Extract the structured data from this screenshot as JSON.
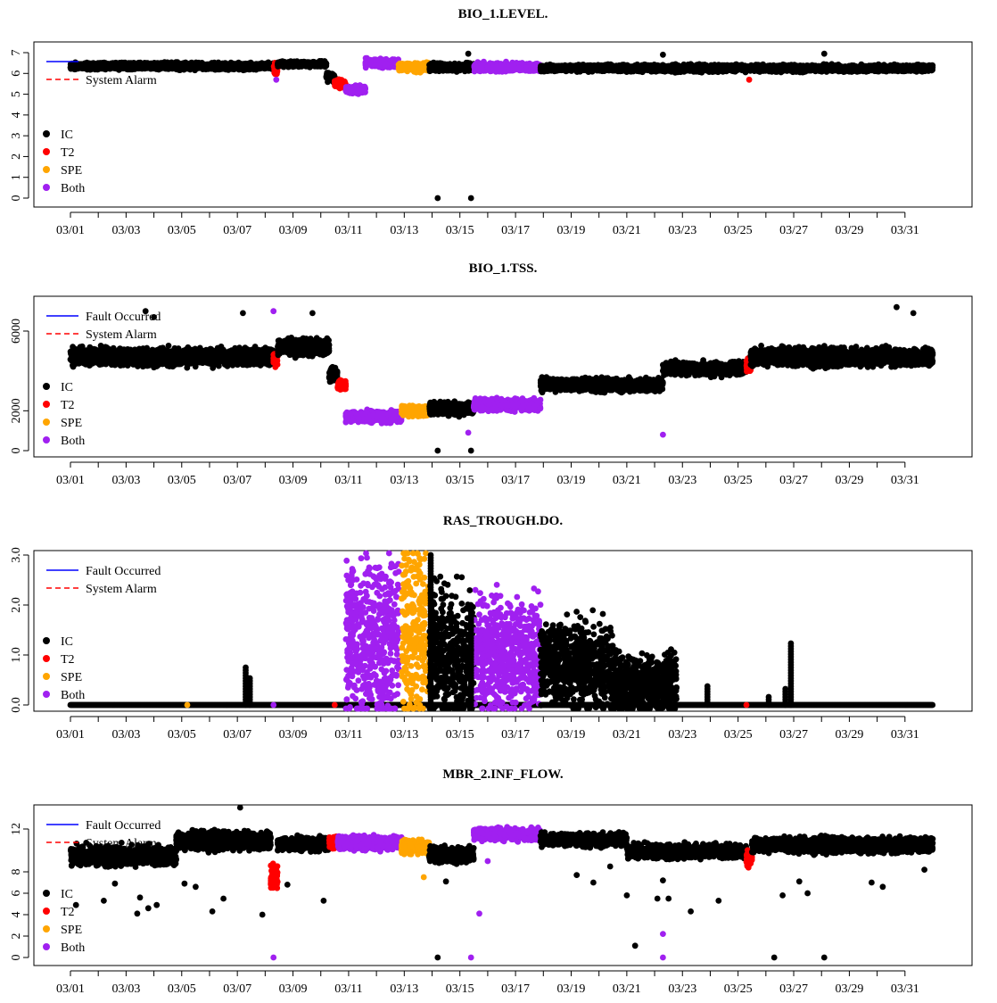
{
  "colors": {
    "IC": "#000000",
    "T2": "#ff0000",
    "SPE": "#ffa500",
    "Both": "#a020f0",
    "fault_line": "#0000ff",
    "alarm_line": "#ff0000"
  },
  "chart_data": [
    {
      "type": "scatter",
      "title": "BIO_1.LEVEL.",
      "x_tick_labels": [
        "03/01",
        "03/03",
        "03/05",
        "03/07",
        "03/09",
        "03/11",
        "03/13",
        "03/15",
        "03/17",
        "03/19",
        "03/21",
        "03/23",
        "03/25",
        "03/27",
        "03/29",
        "03/31"
      ],
      "x_range_days": [
        1,
        32
      ],
      "y_ticks": [
        0,
        1,
        2,
        3,
        4,
        5,
        6,
        7
      ],
      "y_tick_labels": [
        "0",
        "1",
        "2",
        "3",
        "4",
        "5",
        "6",
        "7"
      ],
      "ylim": [
        -0.3,
        7.3
      ],
      "legend_lines": [
        "",
        "System Alarm"
      ],
      "legend_points": [
        "IC",
        "T2",
        "SPE",
        "Both"
      ],
      "segments": [
        {
          "cls": "IC",
          "start": 1.0,
          "end": 8.3,
          "level": 6.35,
          "spread": 0.25
        },
        {
          "cls": "T2",
          "start": 8.3,
          "end": 8.45,
          "level": 6.2,
          "spread": 0.4
        },
        {
          "cls": "IC",
          "start": 8.45,
          "end": 10.2,
          "level": 6.45,
          "spread": 0.2
        },
        {
          "cls": "IC",
          "start": 10.2,
          "end": 10.5,
          "level": 5.8,
          "spread": 0.4
        },
        {
          "cls": "T2",
          "start": 10.5,
          "end": 10.9,
          "level": 5.5,
          "spread": 0.3
        },
        {
          "cls": "Both",
          "start": 10.9,
          "end": 11.6,
          "level": 5.2,
          "spread": 0.3
        },
        {
          "cls": "Both",
          "start": 11.6,
          "end": 12.8,
          "level": 6.5,
          "spread": 0.3
        },
        {
          "cls": "SPE",
          "start": 12.8,
          "end": 13.9,
          "level": 6.3,
          "spread": 0.3
        },
        {
          "cls": "IC",
          "start": 13.9,
          "end": 15.5,
          "level": 6.3,
          "spread": 0.3
        },
        {
          "cls": "Both",
          "start": 15.5,
          "end": 17.9,
          "level": 6.3,
          "spread": 0.3
        },
        {
          "cls": "IC",
          "start": 17.9,
          "end": 32.0,
          "level": 6.25,
          "spread": 0.25
        }
      ],
      "outliers": [
        {
          "x": 14.2,
          "y": 0.0,
          "cls": "IC"
        },
        {
          "x": 15.4,
          "y": 0.0,
          "cls": "IC"
        },
        {
          "x": 15.3,
          "y": 6.95,
          "cls": "IC"
        },
        {
          "x": 22.3,
          "y": 6.9,
          "cls": "IC"
        },
        {
          "x": 28.1,
          "y": 6.95,
          "cls": "IC"
        },
        {
          "x": 25.4,
          "y": 5.7,
          "cls": "T2"
        },
        {
          "x": 8.4,
          "y": 5.7,
          "cls": "Both"
        }
      ]
    },
    {
      "type": "scatter",
      "title": "BIO_1.TSS.",
      "x_tick_labels": [
        "03/01",
        "03/03",
        "03/05",
        "03/07",
        "03/09",
        "03/11",
        "03/13",
        "03/15",
        "03/17",
        "03/19",
        "03/21",
        "03/23",
        "03/25",
        "03/27",
        "03/29",
        "03/31"
      ],
      "x_range_days": [
        1,
        32
      ],
      "y_ticks": [
        0,
        2000,
        6000
      ],
      "y_tick_labels": [
        "0",
        "2000",
        "6000"
      ],
      "ylim": [
        -200,
        7300
      ],
      "legend_lines": [
        "Fault Occurred",
        "System Alarm"
      ],
      "legend_points": [
        "IC",
        "T2",
        "SPE",
        "Both"
      ],
      "segments": [
        {
          "cls": "IC",
          "start": 1.0,
          "end": 8.3,
          "level": 4700,
          "spread": 650
        },
        {
          "cls": "T2",
          "start": 8.3,
          "end": 8.45,
          "level": 4600,
          "spread": 600
        },
        {
          "cls": "IC",
          "start": 8.45,
          "end": 10.3,
          "level": 5200,
          "spread": 650
        },
        {
          "cls": "IC",
          "start": 10.3,
          "end": 10.6,
          "level": 3800,
          "spread": 500
        },
        {
          "cls": "T2",
          "start": 10.6,
          "end": 10.9,
          "level": 3300,
          "spread": 400
        },
        {
          "cls": "Both",
          "start": 10.9,
          "end": 12.9,
          "level": 1700,
          "spread": 450
        },
        {
          "cls": "SPE",
          "start": 12.9,
          "end": 13.9,
          "level": 2000,
          "spread": 400
        },
        {
          "cls": "IC",
          "start": 13.9,
          "end": 15.5,
          "level": 2100,
          "spread": 500
        },
        {
          "cls": "Both",
          "start": 15.5,
          "end": 17.9,
          "level": 2300,
          "spread": 450
        },
        {
          "cls": "IC",
          "start": 17.9,
          "end": 22.3,
          "level": 3300,
          "spread": 500
        },
        {
          "cls": "IC",
          "start": 22.3,
          "end": 25.3,
          "level": 4100,
          "spread": 500
        },
        {
          "cls": "T2",
          "start": 25.3,
          "end": 25.45,
          "level": 4300,
          "spread": 500
        },
        {
          "cls": "IC",
          "start": 25.45,
          "end": 32.0,
          "level": 4700,
          "spread": 700
        }
      ],
      "outliers": [
        {
          "x": 3.7,
          "y": 7000,
          "cls": "IC"
        },
        {
          "x": 4.0,
          "y": 6700,
          "cls": "IC"
        },
        {
          "x": 7.2,
          "y": 6900,
          "cls": "IC"
        },
        {
          "x": 9.7,
          "y": 6900,
          "cls": "IC"
        },
        {
          "x": 14.2,
          "y": 0,
          "cls": "IC"
        },
        {
          "x": 15.4,
          "y": 0,
          "cls": "IC"
        },
        {
          "x": 30.7,
          "y": 7200,
          "cls": "IC"
        },
        {
          "x": 31.3,
          "y": 6900,
          "cls": "IC"
        },
        {
          "x": 8.3,
          "y": 7000,
          "cls": "Both"
        },
        {
          "x": 15.3,
          "y": 900,
          "cls": "Both"
        },
        {
          "x": 22.3,
          "y": 800,
          "cls": "Both"
        }
      ]
    },
    {
      "type": "scatter",
      "title": "RAS_TROUGH.DO.",
      "x_tick_labels": [
        "03/01",
        "03/03",
        "03/05",
        "03/07",
        "03/09",
        "03/11",
        "03/13",
        "03/15",
        "03/17",
        "03/19",
        "03/21",
        "03/23",
        "03/25",
        "03/27",
        "03/29",
        "03/31"
      ],
      "x_range_days": [
        1,
        32
      ],
      "y_ticks": [
        0.0,
        1.0,
        2.0,
        3.0
      ],
      "y_tick_labels": [
        "0.0",
        "1.0",
        "2.0",
        "3.0"
      ],
      "ylim": [
        -0.05,
        3.05
      ],
      "legend_lines": [
        "Fault Occurred",
        "System Alarm"
      ],
      "legend_points": [
        "IC",
        "T2",
        "SPE",
        "Both"
      ],
      "baseline": {
        "cls": "IC",
        "start": 1.0,
        "end": 32.0,
        "y": 0.0
      },
      "segments": [
        {
          "cls": "Both",
          "start": 10.9,
          "end": 12.8,
          "level": 1.3,
          "spread": 2.6
        },
        {
          "cls": "SPE",
          "start": 12.9,
          "end": 13.9,
          "level": 1.5,
          "spread": 2.9
        },
        {
          "cls": "IC",
          "start": 13.9,
          "end": 15.5,
          "level": 1.0,
          "spread": 2.2
        },
        {
          "cls": "Both",
          "start": 15.5,
          "end": 17.9,
          "level": 1.0,
          "spread": 1.8
        },
        {
          "cls": "IC",
          "start": 17.9,
          "end": 20.5,
          "level": 0.8,
          "spread": 1.4
        },
        {
          "cls": "IC",
          "start": 20.5,
          "end": 22.8,
          "level": 0.4,
          "spread": 0.9
        }
      ],
      "spikes": [
        {
          "x": 7.3,
          "top": 0.8,
          "cls": "IC"
        },
        {
          "x": 7.45,
          "top": 0.55,
          "cls": "IC"
        },
        {
          "x": 23.9,
          "top": 0.4,
          "cls": "IC"
        },
        {
          "x": 26.1,
          "top": 0.2,
          "cls": "IC"
        },
        {
          "x": 26.7,
          "top": 0.35,
          "cls": "IC"
        },
        {
          "x": 26.9,
          "top": 1.25,
          "cls": "IC"
        },
        {
          "x": 13.95,
          "top": 3.0,
          "cls": "IC"
        },
        {
          "x": 15.4,
          "top": 2.0,
          "cls": "IC"
        }
      ],
      "outliers": [
        {
          "x": 8.3,
          "y": 0.0,
          "cls": "Both"
        },
        {
          "x": 10.5,
          "y": 0.0,
          "cls": "T2"
        },
        {
          "x": 25.3,
          "y": 0.0,
          "cls": "T2"
        },
        {
          "x": 5.2,
          "y": 0.0,
          "cls": "SPE"
        }
      ]
    },
    {
      "type": "scatter",
      "title": "MBR_2.INF_FLOW.",
      "x_tick_labels": [
        "03/01",
        "03/03",
        "03/05",
        "03/07",
        "03/09",
        "03/11",
        "03/13",
        "03/15",
        "03/17",
        "03/19",
        "03/21",
        "03/23",
        "03/25",
        "03/27",
        "03/29",
        "03/31"
      ],
      "x_range_days": [
        1,
        32
      ],
      "y_ticks": [
        0,
        2,
        4,
        6,
        8,
        12
      ],
      "y_tick_labels": [
        "0",
        "2",
        "4",
        "6",
        "8",
        "12"
      ],
      "ylim": [
        -0.3,
        14.0
      ],
      "legend_lines": [
        "Fault Occurred",
        "System Alarm"
      ],
      "legend_points": [
        "IC",
        "T2",
        "SPE",
        "Both"
      ],
      "segments": [
        {
          "cls": "IC",
          "start": 1.0,
          "end": 4.8,
          "level": 9.5,
          "spread": 1.4
        },
        {
          "cls": "IC",
          "start": 4.8,
          "end": 8.2,
          "level": 10.9,
          "spread": 1.3
        },
        {
          "cls": "T2",
          "start": 8.2,
          "end": 8.45,
          "level": 7.5,
          "spread": 2.2
        },
        {
          "cls": "IC",
          "start": 8.45,
          "end": 10.3,
          "level": 10.6,
          "spread": 1.0
        },
        {
          "cls": "T2",
          "start": 10.3,
          "end": 10.6,
          "level": 10.8,
          "spread": 0.9
        },
        {
          "cls": "Both",
          "start": 10.6,
          "end": 12.9,
          "level": 10.7,
          "spread": 1.0
        },
        {
          "cls": "SPE",
          "start": 12.9,
          "end": 13.9,
          "level": 10.3,
          "spread": 1.0
        },
        {
          "cls": "IC",
          "start": 13.9,
          "end": 15.5,
          "level": 9.6,
          "spread": 1.1
        },
        {
          "cls": "Both",
          "start": 15.5,
          "end": 17.9,
          "level": 11.5,
          "spread": 0.9
        },
        {
          "cls": "IC",
          "start": 17.9,
          "end": 21.0,
          "level": 11.0,
          "spread": 0.9
        },
        {
          "cls": "IC",
          "start": 21.0,
          "end": 25.3,
          "level": 9.9,
          "spread": 1.0
        },
        {
          "cls": "T2",
          "start": 25.3,
          "end": 25.5,
          "level": 9.2,
          "spread": 1.2
        },
        {
          "cls": "IC",
          "start": 25.5,
          "end": 32.0,
          "level": 10.5,
          "spread": 1.1
        }
      ],
      "outliers": [
        {
          "x": 7.1,
          "y": 14.0,
          "cls": "IC"
        },
        {
          "x": 1.2,
          "y": 4.9,
          "cls": "IC"
        },
        {
          "x": 2.2,
          "y": 5.3,
          "cls": "IC"
        },
        {
          "x": 2.6,
          "y": 6.9,
          "cls": "IC"
        },
        {
          "x": 3.4,
          "y": 4.1,
          "cls": "IC"
        },
        {
          "x": 3.5,
          "y": 5.6,
          "cls": "IC"
        },
        {
          "x": 3.8,
          "y": 4.6,
          "cls": "IC"
        },
        {
          "x": 4.1,
          "y": 4.9,
          "cls": "IC"
        },
        {
          "x": 5.1,
          "y": 6.9,
          "cls": "IC"
        },
        {
          "x": 5.5,
          "y": 6.6,
          "cls": "IC"
        },
        {
          "x": 6.1,
          "y": 4.3,
          "cls": "IC"
        },
        {
          "x": 6.5,
          "y": 5.5,
          "cls": "IC"
        },
        {
          "x": 7.9,
          "y": 4.0,
          "cls": "IC"
        },
        {
          "x": 8.8,
          "y": 6.8,
          "cls": "IC"
        },
        {
          "x": 10.1,
          "y": 5.3,
          "cls": "IC"
        },
        {
          "x": 14.2,
          "y": 0.0,
          "cls": "IC"
        },
        {
          "x": 14.5,
          "y": 7.1,
          "cls": "IC"
        },
        {
          "x": 19.2,
          "y": 7.7,
          "cls": "IC"
        },
        {
          "x": 19.8,
          "y": 7.0,
          "cls": "IC"
        },
        {
          "x": 20.4,
          "y": 8.5,
          "cls": "IC"
        },
        {
          "x": 21.0,
          "y": 5.8,
          "cls": "IC"
        },
        {
          "x": 21.3,
          "y": 1.1,
          "cls": "IC"
        },
        {
          "x": 22.1,
          "y": 5.5,
          "cls": "IC"
        },
        {
          "x": 22.3,
          "y": 7.2,
          "cls": "IC"
        },
        {
          "x": 22.5,
          "y": 5.5,
          "cls": "IC"
        },
        {
          "x": 23.3,
          "y": 4.3,
          "cls": "IC"
        },
        {
          "x": 24.3,
          "y": 5.3,
          "cls": "IC"
        },
        {
          "x": 26.3,
          "y": 0.0,
          "cls": "IC"
        },
        {
          "x": 26.6,
          "y": 5.8,
          "cls": "IC"
        },
        {
          "x": 27.2,
          "y": 7.1,
          "cls": "IC"
        },
        {
          "x": 27.5,
          "y": 6.0,
          "cls": "IC"
        },
        {
          "x": 28.1,
          "y": 0.0,
          "cls": "IC"
        },
        {
          "x": 29.8,
          "y": 7.0,
          "cls": "IC"
        },
        {
          "x": 30.2,
          "y": 6.6,
          "cls": "IC"
        },
        {
          "x": 31.7,
          "y": 8.2,
          "cls": "IC"
        },
        {
          "x": 13.7,
          "y": 7.5,
          "cls": "SPE"
        },
        {
          "x": 8.3,
          "y": 0.0,
          "cls": "Both"
        },
        {
          "x": 15.4,
          "y": 0.0,
          "cls": "Both"
        },
        {
          "x": 15.7,
          "y": 4.1,
          "cls": "Both"
        },
        {
          "x": 16.0,
          "y": 9.0,
          "cls": "Both"
        },
        {
          "x": 22.3,
          "y": 2.2,
          "cls": "Both"
        },
        {
          "x": 22.3,
          "y": 0.0,
          "cls": "Both"
        }
      ]
    }
  ]
}
